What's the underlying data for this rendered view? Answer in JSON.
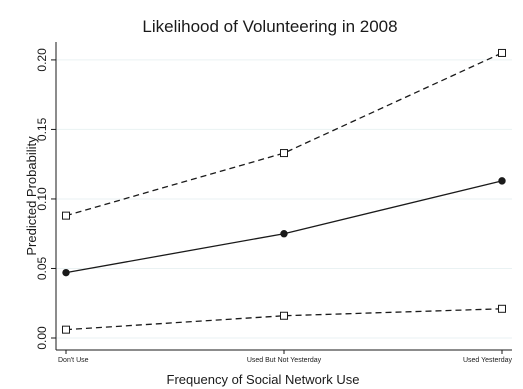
{
  "chart_data": {
    "type": "line",
    "title": "Likelihood of Volunteering in 2008",
    "xlabel": "Frequency of Social Network Use",
    "ylabel": "Predicted Probability",
    "categories": [
      "Don't Use",
      "Used But Not Yesterday",
      "Used Yesterday"
    ],
    "ylim": [
      0,
      0.21
    ],
    "yticks": [
      "0.00",
      "0.05",
      "0.10",
      "0.15",
      "0.20"
    ],
    "ytick_values": [
      0,
      0.05,
      0.1,
      0.15,
      0.2
    ],
    "grid": true,
    "series": [
      {
        "role": "upper",
        "line": "dashed",
        "marker": "hollow-square",
        "values": [
          0.088,
          0.133,
          0.205
        ]
      },
      {
        "role": "estimate",
        "line": "solid",
        "marker": "filled-circle",
        "values": [
          0.047,
          0.075,
          0.113
        ]
      },
      {
        "role": "lower",
        "line": "dashed",
        "marker": "hollow-square",
        "values": [
          0.006,
          0.016,
          0.021
        ]
      }
    ],
    "colors": {
      "line": "#1a1a1a",
      "grid": "#eaf2f3",
      "background": "#ffffff"
    }
  }
}
